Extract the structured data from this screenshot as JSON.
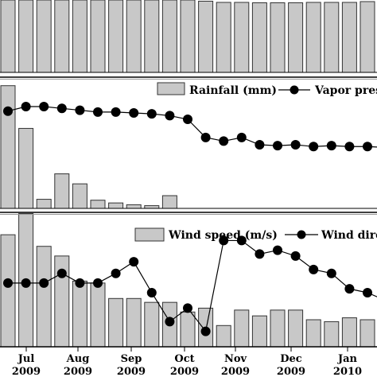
{
  "chart_data": [
    {
      "type": "bar",
      "panel": "top",
      "note": "partially cropped panel; legend and axis not visible",
      "values": [
        null,
        null,
        null,
        null,
        null,
        null,
        null,
        null,
        null,
        null,
        null,
        17.9,
        17.6,
        17.6,
        17.5,
        17.5,
        17.5,
        17.6,
        17.6,
        17.6,
        17.8,
        17.6,
        17.5,
        17.3,
        17.3,
        17.1,
        17.6,
        17.5,
        17.4,
        17.5,
        17.3,
        17.2,
        17.1,
        17.3,
        17.1,
        17.1,
        17.3
      ],
      "ylim": [
        0,
        18
      ]
    },
    {
      "type": "bar+line",
      "panel": "middle",
      "legend": {
        "bar": "Rainfall (mm)",
        "line": "Vapor pres"
      },
      "series": [
        {
          "name": "Rainfall (mm)",
          "type": "bar",
          "values": [
            13.5,
            8.8,
            1.0,
            3.8,
            2.7,
            0.9,
            0.6,
            0.4,
            0.3,
            1.4,
            0,
            0,
            0,
            0,
            0,
            0,
            0,
            0,
            0,
            0,
            0,
            0,
            0,
            0,
            0,
            0,
            0,
            0,
            0,
            0,
            0,
            0,
            0,
            0,
            0,
            0,
            0
          ]
        },
        {
          "name": "Vapor pres",
          "type": "line",
          "values": [
            10.7,
            11.2,
            11.2,
            11.0,
            10.8,
            10.6,
            10.6,
            10.5,
            10.4,
            10.2,
            9.8,
            7.8,
            7.4,
            7.8,
            7.0,
            6.9,
            7.0,
            6.8,
            6.9,
            6.8,
            6.8,
            6.7,
            7.1,
            8.4,
            7.6,
            7.5,
            7.7,
            7.2,
            7.3,
            7.1,
            7.3,
            7.0,
            7.2,
            7.1,
            7.0,
            7.2,
            7.3
          ]
        }
      ],
      "ylim": [
        0,
        14
      ]
    },
    {
      "type": "bar+line",
      "panel": "bottom",
      "legend": {
        "bar": "Wind speed (m/s)",
        "line": "Wind dire"
      },
      "series": [
        {
          "name": "Wind speed (m/s)",
          "type": "bar",
          "values": [
            5.8,
            6.9,
            5.2,
            4.7,
            3.4,
            3.3,
            2.5,
            2.5,
            2.3,
            2.3,
            1.8,
            2.0,
            1.1,
            1.9,
            1.6,
            1.9,
            1.9,
            1.4,
            1.3,
            1.5,
            1.4,
            1.2,
            1.1,
            1.0,
            1.0,
            1.0,
            0.9,
            0.9,
            1.0,
            0.8,
            0.6,
            0.6,
            1.0,
            0.6,
            0.5,
            0.9,
            1.0
          ]
        },
        {
          "name": "Wind dire",
          "type": "line",
          "values": [
            3.3,
            3.3,
            3.3,
            3.8,
            3.3,
            3.3,
            3.8,
            4.4,
            2.8,
            1.3,
            2.0,
            0.8,
            5.5,
            5.5,
            4.8,
            5.0,
            4.7,
            4.0,
            3.8,
            3.0,
            2.8,
            2.4,
            2.5,
            0.8,
            5.5,
            0.8,
            0.8,
            0.8,
            0.8,
            0.8,
            0.8,
            0.8,
            0.8,
            0.8,
            0.8,
            0.8,
            0.8
          ]
        }
      ],
      "ylim": [
        0,
        7
      ]
    }
  ],
  "x_axis": {
    "tick_labels": [
      {
        "month": "Jul",
        "year": "2009"
      },
      {
        "month": "Aug",
        "year": "2009"
      },
      {
        "month": "Sep",
        "year": "2009"
      },
      {
        "month": "Oct",
        "year": "2009"
      },
      {
        "month": "Nov",
        "year": "2009"
      },
      {
        "month": "Dec",
        "year": "2009"
      },
      {
        "month": "Jan",
        "year": "2010"
      }
    ]
  },
  "colors": {
    "bar_fill": "#c8c8c8",
    "bar_stroke": "#333333",
    "line": "#000000",
    "marker": "#000000",
    "frame": "#000000",
    "divider": "#999999"
  }
}
